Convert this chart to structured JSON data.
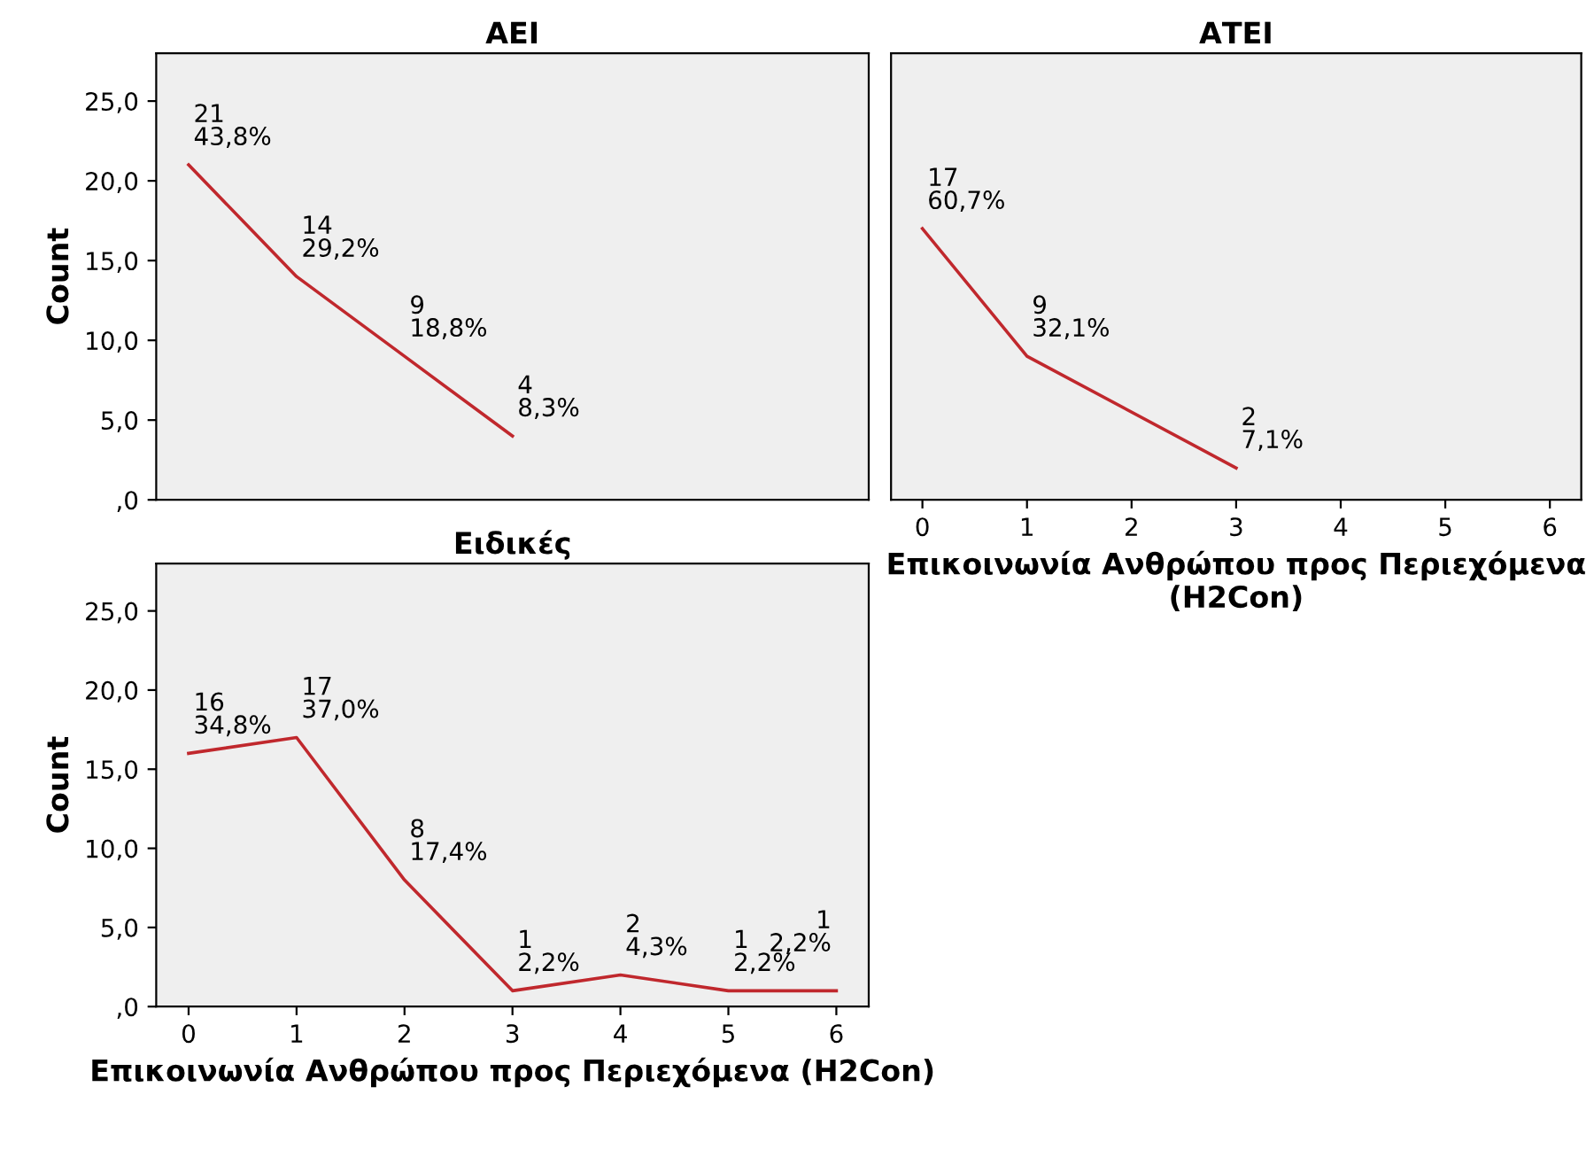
{
  "chart_data": [
    {
      "type": "line",
      "title": "ΑΕΙ",
      "ylabel": "Count",
      "x": [
        0,
        1,
        2,
        3
      ],
      "tick_labels": "y",
      "series": [
        {
          "color": "#c0282d",
          "values": [
            21,
            14,
            9,
            4
          ],
          "value_labels": [
            "21\n43,8%",
            "14\n29,2%",
            "9\n18,8%",
            "4\n8,3%"
          ]
        }
      ],
      "xlim": [
        -0.3,
        6.3
      ],
      "ylim": [
        0,
        28
      ],
      "yticks": [
        {
          "value": 0,
          "label": ",0"
        },
        {
          "value": 5,
          "label": "5,0"
        },
        {
          "value": 10,
          "label": "10,0"
        },
        {
          "value": 15,
          "label": "15,0"
        },
        {
          "value": 20,
          "label": "20,0"
        },
        {
          "value": 25,
          "label": "25,0"
        }
      ],
      "grid": false,
      "legend": false
    },
    {
      "type": "line",
      "title": "ΑΤΕΙ",
      "xlabel": "Επικοινωνία Ανθρώπου προς Περιεχόμενα (H2Con)",
      "x": [
        0,
        1,
        3
      ],
      "tick_labels": "x",
      "series": [
        {
          "color": "#c0282d",
          "values": [
            17,
            9,
            2
          ],
          "value_labels": [
            "17\n60,7%",
            "9\n32,1%",
            "2\n7,1%"
          ]
        }
      ],
      "xlim": [
        -0.3,
        6.3
      ],
      "xticks": [
        0,
        1,
        2,
        3,
        4,
        5,
        6
      ],
      "ylim": [
        0,
        28
      ],
      "grid": false,
      "legend": false
    },
    {
      "type": "line",
      "title": "Ειδικές",
      "ylabel": "Count",
      "xlabel": "Επικοινωνία Ανθρώπου προς Περιεχόμενα (H2Con)",
      "x": [
        0,
        1,
        2,
        3,
        4,
        5,
        6
      ],
      "series": [
        {
          "color": "#c0282d",
          "values": [
            16,
            17,
            8,
            1,
            2,
            1,
            1
          ],
          "value_labels": [
            "16\n34,8%",
            "17\n37,0%",
            "8\n17,4%",
            "1\n2,2%",
            "2\n4,3%",
            "1\n2,2%",
            "1\n2,2%"
          ]
        }
      ],
      "xlim": [
        -0.3,
        6.3
      ],
      "xticks": [
        0,
        1,
        2,
        3,
        4,
        5,
        6
      ],
      "ylim": [
        0,
        28
      ],
      "yticks": [
        {
          "value": 0,
          "label": ",0"
        },
        {
          "value": 5,
          "label": "5,0"
        },
        {
          "value": 10,
          "label": "10,0"
        },
        {
          "value": 15,
          "label": "15,0"
        },
        {
          "value": 20,
          "label": "20,0"
        },
        {
          "value": 25,
          "label": "25,0"
        }
      ],
      "grid": false,
      "legend": false
    }
  ]
}
